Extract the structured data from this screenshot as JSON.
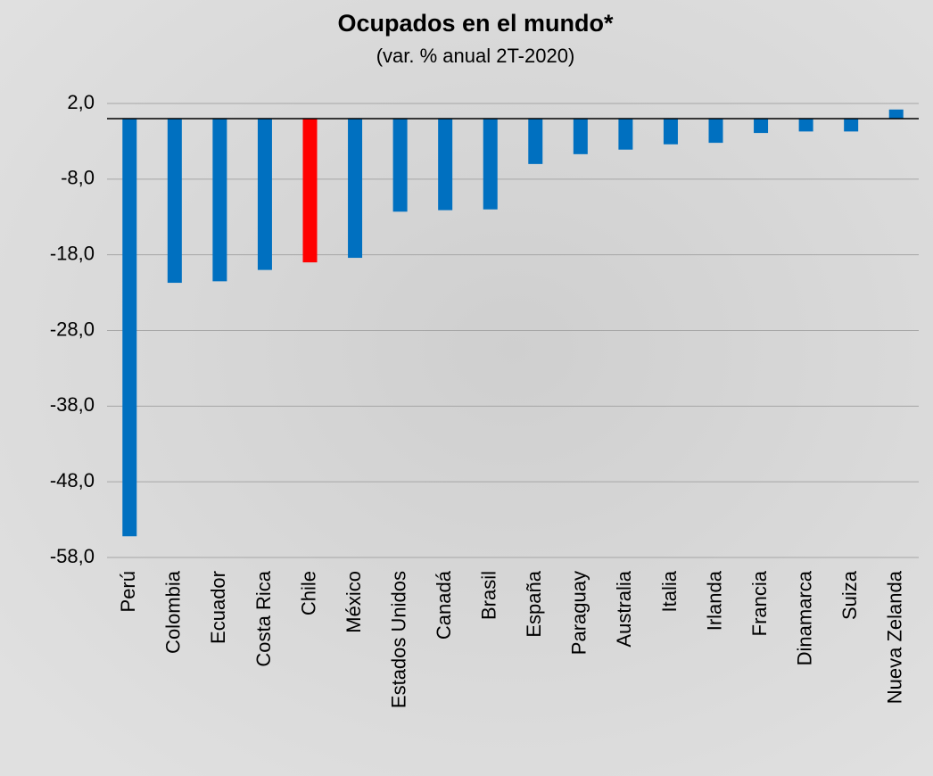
{
  "chart_data": {
    "type": "bar",
    "title": "Ocupados en el mundo*",
    "subtitle": "(var. % anual 2T-2020)",
    "categories": [
      "Perú",
      "Colombia",
      "Ecuador",
      "Costa Rica",
      "Chile",
      "México",
      "Estados Unidos",
      "Canadá",
      "Brasil",
      "España",
      "Paraguay",
      "Australia",
      "Italia",
      "Irlanda",
      "Francia",
      "Dinamarca",
      "Suiza",
      "Nueva Zelanda"
    ],
    "values": [
      -55.2,
      -21.7,
      -21.5,
      -20.0,
      -19.0,
      -18.4,
      -12.3,
      -12.1,
      -12.0,
      -6.0,
      -4.7,
      -4.1,
      -3.4,
      -3.2,
      -1.9,
      -1.7,
      -1.7,
      1.2
    ],
    "colors": [
      "#0070c0",
      "#0070c0",
      "#0070c0",
      "#0070c0",
      "#ff0000",
      "#0070c0",
      "#0070c0",
      "#0070c0",
      "#0070c0",
      "#0070c0",
      "#0070c0",
      "#0070c0",
      "#0070c0",
      "#0070c0",
      "#0070c0",
      "#0070c0",
      "#0070c0",
      "#0070c0"
    ],
    "ylim": [
      -58,
      2
    ],
    "yticks": [
      {
        "value": -58,
        "label": "-58,0"
      },
      {
        "value": -48,
        "label": "-48,0"
      },
      {
        "value": -38,
        "label": "-38,0"
      },
      {
        "value": -28,
        "label": "-28,0"
      },
      {
        "value": -18,
        "label": "-18,0"
      },
      {
        "value": -8,
        "label": "-8,0"
      },
      {
        "value": 2,
        "label": "2,0"
      }
    ],
    "grid": true
  }
}
